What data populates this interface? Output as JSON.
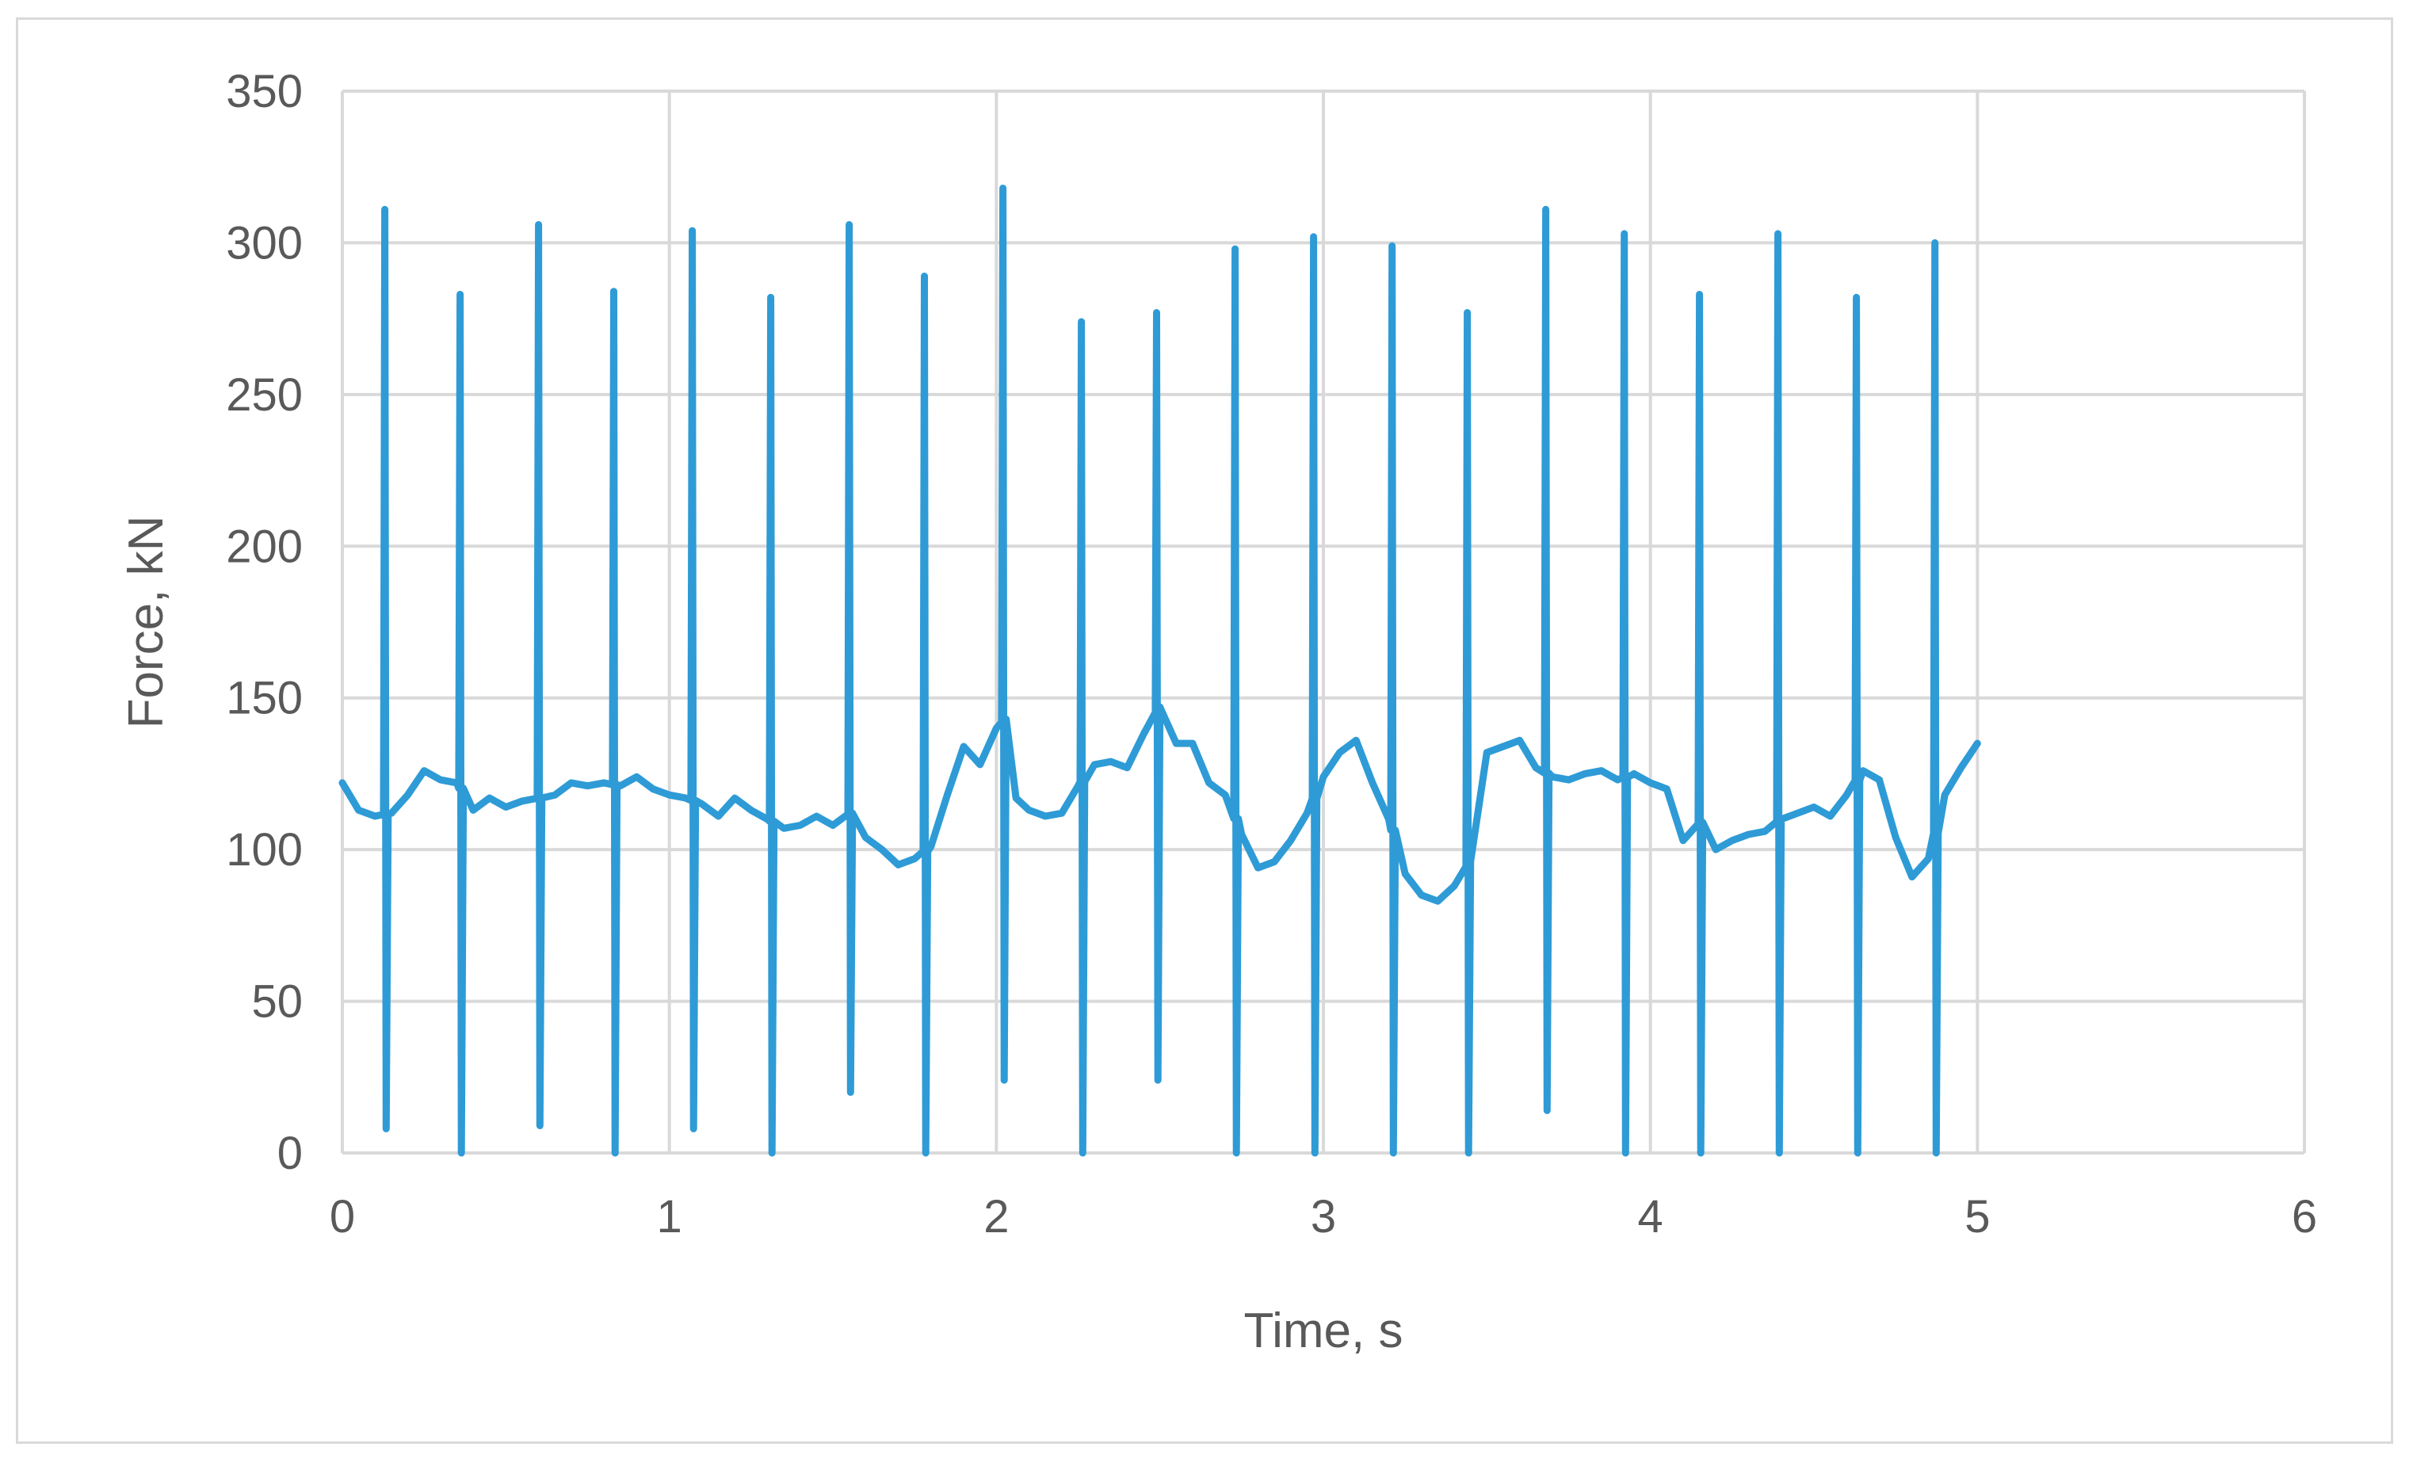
{
  "chart_data": {
    "type": "line",
    "title": "",
    "xlabel": "Time, s",
    "ylabel": "Force, kN",
    "xlim": [
      0,
      6
    ],
    "ylim": [
      0,
      350
    ],
    "x_ticks": [
      "0",
      "1",
      "2",
      "3",
      "4",
      "5",
      "6"
    ],
    "y_ticks": [
      "0",
      "50",
      "100",
      "150",
      "200",
      "250",
      "300",
      "350"
    ],
    "grid": true,
    "legend": "none",
    "colors": {
      "series": "#2e9bd6",
      "grid": "#d9d9d9",
      "text": "#595959"
    },
    "series": [
      {
        "baseline": [
          [
            0.0,
            122
          ],
          [
            0.05,
            113
          ],
          [
            0.1,
            111
          ],
          [
            0.15,
            112
          ],
          [
            0.2,
            118
          ],
          [
            0.25,
            126
          ],
          [
            0.3,
            123
          ],
          [
            0.35,
            122
          ],
          [
            0.4,
            113
          ],
          [
            0.45,
            117
          ],
          [
            0.5,
            114
          ],
          [
            0.55,
            116
          ],
          [
            0.6,
            117
          ],
          [
            0.65,
            118
          ],
          [
            0.7,
            122
          ],
          [
            0.75,
            121
          ],
          [
            0.8,
            122
          ],
          [
            0.85,
            121
          ],
          [
            0.9,
            124
          ],
          [
            0.95,
            120
          ],
          [
            1.0,
            118
          ],
          [
            1.05,
            117
          ],
          [
            1.1,
            115
          ],
          [
            1.15,
            111
          ],
          [
            1.2,
            117
          ],
          [
            1.25,
            113
          ],
          [
            1.3,
            110
          ],
          [
            1.35,
            107
          ],
          [
            1.4,
            108
          ],
          [
            1.45,
            111
          ],
          [
            1.5,
            108
          ],
          [
            1.55,
            112
          ],
          [
            1.6,
            104
          ],
          [
            1.65,
            100
          ],
          [
            1.7,
            95
          ],
          [
            1.75,
            97
          ],
          [
            1.8,
            101
          ],
          [
            1.85,
            118
          ],
          [
            1.9,
            134
          ],
          [
            1.95,
            128
          ],
          [
            2.0,
            140
          ],
          [
            2.03,
            143
          ],
          [
            2.06,
            117
          ],
          [
            2.1,
            113
          ],
          [
            2.15,
            111
          ],
          [
            2.2,
            112
          ],
          [
            2.25,
            121
          ],
          [
            2.3,
            128
          ],
          [
            2.35,
            129
          ],
          [
            2.4,
            127
          ],
          [
            2.45,
            138
          ],
          [
            2.5,
            147
          ],
          [
            2.55,
            135
          ],
          [
            2.6,
            135
          ],
          [
            2.65,
            122
          ],
          [
            2.7,
            118
          ],
          [
            2.75,
            105
          ],
          [
            2.8,
            94
          ],
          [
            2.85,
            96
          ],
          [
            2.9,
            103
          ],
          [
            2.95,
            112
          ],
          [
            3.0,
            124
          ],
          [
            3.05,
            132
          ],
          [
            3.1,
            136
          ],
          [
            3.15,
            122
          ],
          [
            3.2,
            110
          ],
          [
            3.25,
            92
          ],
          [
            3.3,
            85
          ],
          [
            3.35,
            83
          ],
          [
            3.4,
            88
          ],
          [
            3.45,
            96
          ],
          [
            3.5,
            132
          ],
          [
            3.55,
            134
          ],
          [
            3.6,
            136
          ],
          [
            3.65,
            127
          ],
          [
            3.7,
            124
          ],
          [
            3.75,
            123
          ],
          [
            3.8,
            125
          ],
          [
            3.85,
            126
          ],
          [
            3.9,
            123
          ],
          [
            3.95,
            125
          ],
          [
            4.0,
            122
          ],
          [
            4.05,
            120
          ],
          [
            4.1,
            103
          ],
          [
            4.15,
            109
          ],
          [
            4.2,
            100
          ],
          [
            4.25,
            103
          ],
          [
            4.3,
            105
          ],
          [
            4.35,
            106
          ],
          [
            4.4,
            110
          ],
          [
            4.45,
            112
          ],
          [
            4.5,
            114
          ],
          [
            4.55,
            111
          ],
          [
            4.6,
            118
          ],
          [
            4.65,
            126
          ],
          [
            4.7,
            123
          ],
          [
            4.75,
            104
          ],
          [
            4.8,
            91
          ],
          [
            4.85,
            97
          ],
          [
            4.9,
            118
          ],
          [
            4.95,
            127
          ],
          [
            5.0,
            135
          ]
        ],
        "spikes": [
          {
            "t": 0.13,
            "max": 311,
            "min": 8
          },
          {
            "t": 0.36,
            "max": 283,
            "min": 0
          },
          {
            "t": 0.6,
            "max": 306,
            "min": 9
          },
          {
            "t": 0.83,
            "max": 284,
            "min": 0
          },
          {
            "t": 1.07,
            "max": 304,
            "min": 8
          },
          {
            "t": 1.31,
            "max": 282,
            "min": 0
          },
          {
            "t": 1.55,
            "max": 306,
            "min": 20
          },
          {
            "t": 1.78,
            "max": 289,
            "min": 0
          },
          {
            "t": 2.02,
            "max": 318,
            "min": 24
          },
          {
            "t": 2.26,
            "max": 274,
            "min": 0
          },
          {
            "t": 2.49,
            "max": 277,
            "min": 24
          },
          {
            "t": 2.73,
            "max": 298,
            "min": 0
          },
          {
            "t": 2.97,
            "max": 302,
            "min": 0
          },
          {
            "t": 3.21,
            "max": 299,
            "min": 0
          },
          {
            "t": 3.44,
            "max": 277,
            "min": 0
          },
          {
            "t": 3.68,
            "max": 311,
            "min": 14
          },
          {
            "t": 3.92,
            "max": 303,
            "min": 0
          },
          {
            "t": 4.15,
            "max": 283,
            "min": 0
          },
          {
            "t": 4.39,
            "max": 303,
            "min": 0
          },
          {
            "t": 4.63,
            "max": 282,
            "min": 0
          },
          {
            "t": 4.87,
            "max": 300,
            "min": 0
          }
        ]
      }
    ]
  }
}
